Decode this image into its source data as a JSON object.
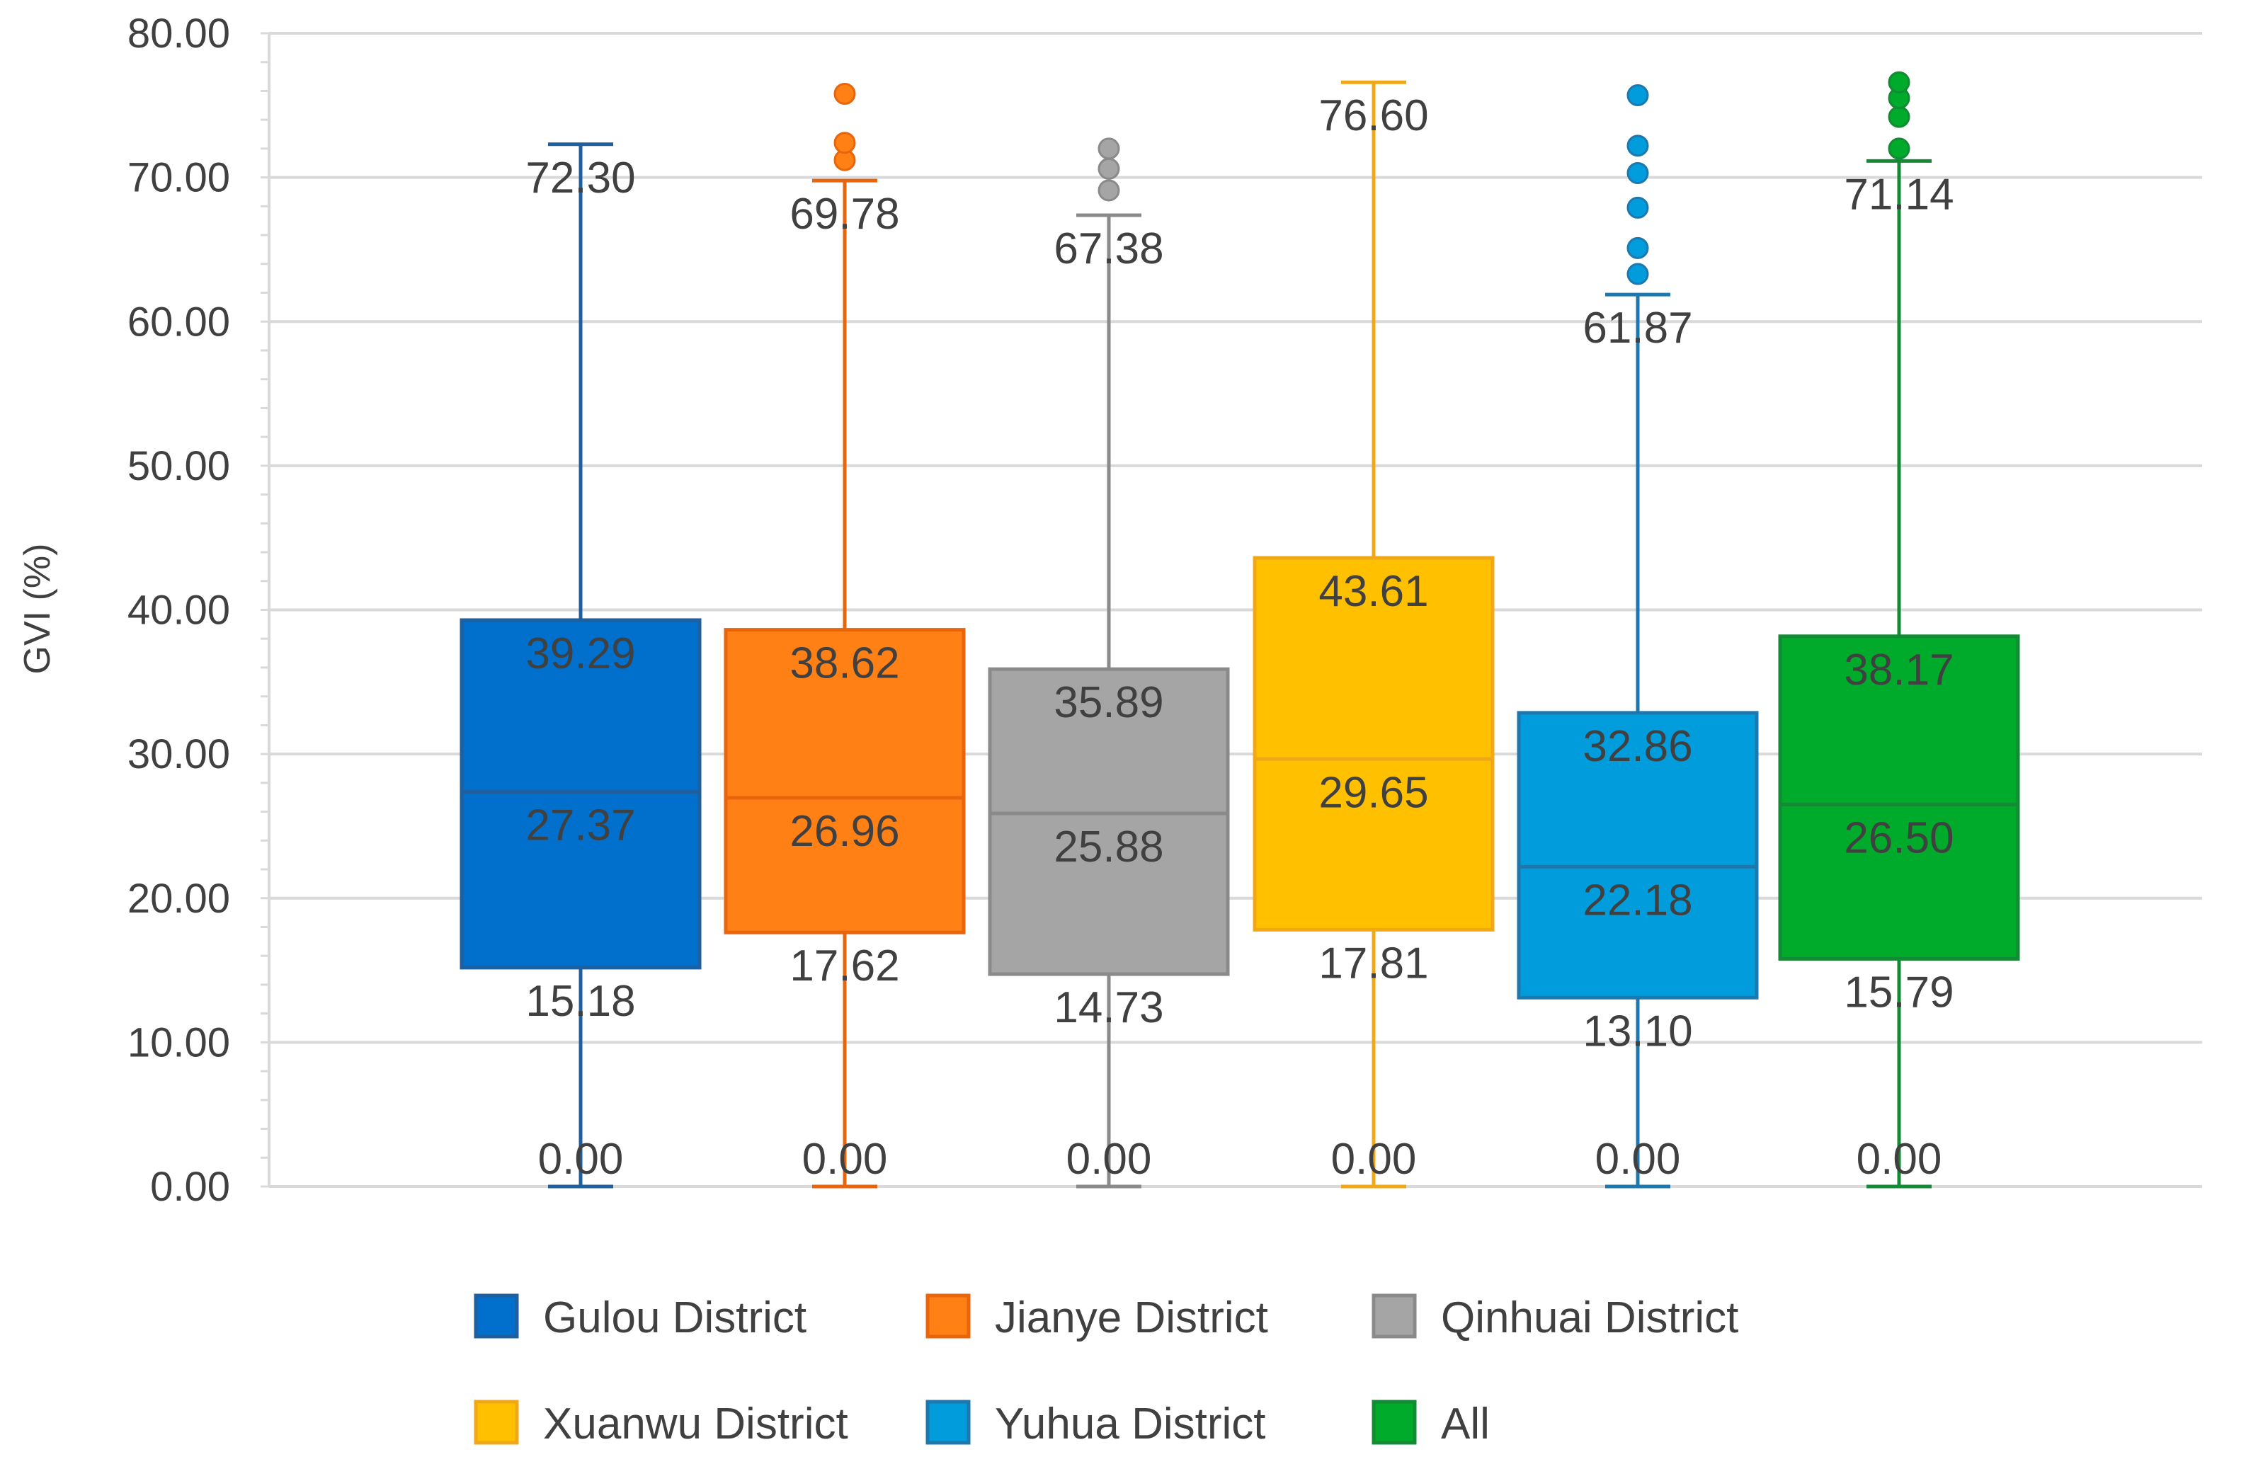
{
  "chart_data": {
    "type": "box",
    "title": "",
    "xlabel": "",
    "ylabel": "GVI (%)",
    "ylim": [
      0,
      80
    ],
    "ytick_step": 10,
    "yticks": [
      "0.00",
      "10.00",
      "20.00",
      "30.00",
      "40.00",
      "50.00",
      "60.00",
      "70.00",
      "80.00"
    ],
    "grid": true,
    "legend_position": "bottom",
    "series": [
      {
        "name": "Gulou District",
        "color": "#0070CC",
        "edge": "#1F5F9E",
        "min": 0.0,
        "q1": 15.18,
        "median": 27.37,
        "q3": 39.29,
        "max": 72.3,
        "labels": [
          "0.00",
          "15.18",
          "27.37",
          "39.29",
          "72.30"
        ],
        "outliers": []
      },
      {
        "name": "Jianye District",
        "color": "#FF8014",
        "edge": "#E8650C",
        "min": 0.0,
        "q1": 17.62,
        "median": 26.96,
        "q3": 38.62,
        "max": 69.78,
        "labels": [
          "0.00",
          "17.62",
          "26.96",
          "38.62",
          "69.78"
        ],
        "outliers": [
          71.2,
          72.4,
          75.8
        ]
      },
      {
        "name": "Qinhuai District",
        "color": "#A5A5A5",
        "edge": "#8A8A8A",
        "min": 0.0,
        "q1": 14.73,
        "median": 25.88,
        "q3": 35.89,
        "max": 67.38,
        "labels": [
          "0.00",
          "14.73",
          "25.88",
          "35.89",
          "67.38"
        ],
        "outliers": [
          69.1,
          70.6,
          72.0
        ]
      },
      {
        "name": "Xuanwu District",
        "color": "#FFC000",
        "edge": "#F0A818",
        "min": 0.0,
        "q1": 17.81,
        "median": 29.65,
        "q3": 43.61,
        "max": 76.6,
        "labels": [
          "0.00",
          "17.81",
          "29.65",
          "43.61",
          "76.60"
        ],
        "outliers": []
      },
      {
        "name": "Yuhua District",
        "color": "#009CDC",
        "edge": "#1E78AE",
        "min": 0.0,
        "q1": 13.1,
        "median": 22.18,
        "q3": 32.86,
        "max": 61.87,
        "labels": [
          "0.00",
          "13.10",
          "22.18",
          "32.86",
          "61.87"
        ],
        "outliers": [
          63.3,
          65.1,
          67.9,
          70.3,
          72.2,
          75.7
        ]
      },
      {
        "name": "All",
        "color": "#00AA2A",
        "edge": "#138A34",
        "min": 0.0,
        "q1": 15.79,
        "median": 26.5,
        "q3": 38.17,
        "max": 71.14,
        "labels": [
          "0.00",
          "15.79",
          "26.50",
          "38.17",
          "71.14"
        ],
        "outliers": [
          72.0,
          74.2,
          75.5,
          76.6
        ]
      }
    ]
  }
}
